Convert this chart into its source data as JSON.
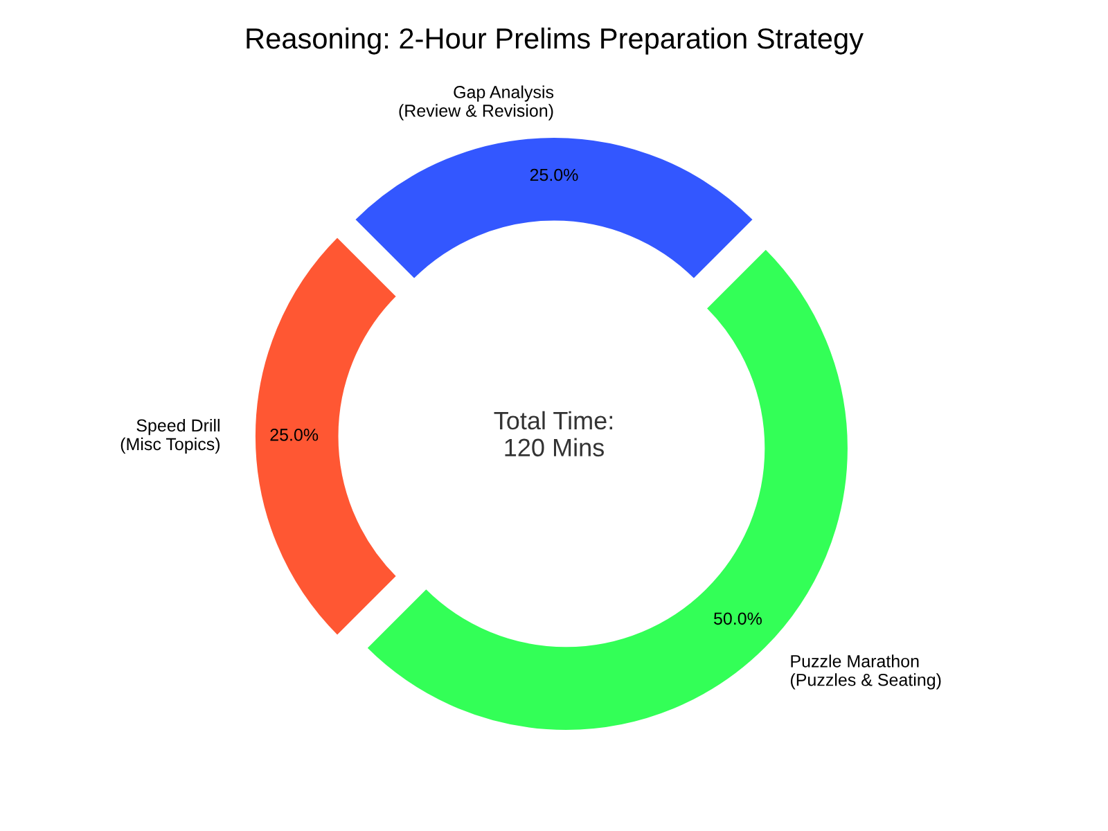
{
  "chart_data": {
    "type": "donut",
    "title": "Reasoning: 2-Hour Prelims Preparation Strategy",
    "categories": [
      "Puzzle Marathon\n(Puzzles & Seating)",
      "Gap Analysis\n(Review & Revision)",
      "Speed Drill\n(Misc Topics)"
    ],
    "values": [
      50,
      25,
      25
    ],
    "value_labels": [
      "50.0%",
      "25.0%",
      "25.0%"
    ],
    "colors": [
      "#33ff57",
      "#3357ff",
      "#ff5733"
    ],
    "annotations": [
      "Total Time:\n120 Mins"
    ],
    "legend": false
  }
}
